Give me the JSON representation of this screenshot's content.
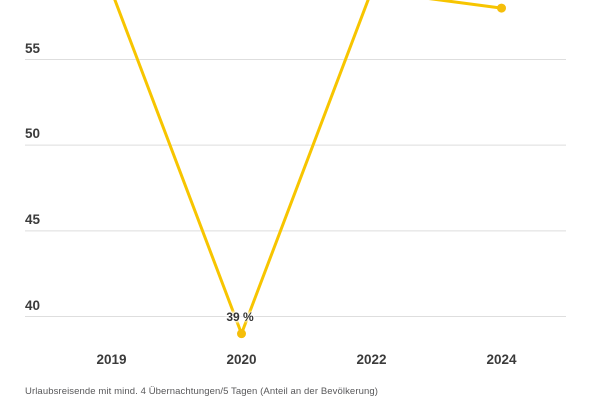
{
  "chart_data": {
    "type": "line",
    "categories": [
      "2019",
      "2020",
      "2022",
      "2024"
    ],
    "series": [
      {
        "name": "Urlaubsreisende mit mind. 4 Übernachtungen/5 Tagen (Anteil an der Bevölkerung)",
        "values": [
          59,
          39,
          59,
          58
        ]
      }
    ],
    "data_labels": [
      "",
      "39 %",
      "",
      ""
    ],
    "yticks": [
      40,
      45,
      50,
      55
    ],
    "ylim_visible": [
      38,
      58.5
    ],
    "grid": true,
    "legend": false,
    "marker": "circle",
    "xlabel": "",
    "ylabel": "",
    "footnote": "Urlaubsreisende mit mind. 4 Übernachtungen/5 Tagen (Anteil an der Bevölkerung)",
    "colors": {
      "line": "#F7C500",
      "marker": "#F5BE0A",
      "grid": "#DEDEDE",
      "tick_text": "#3B3B3B",
      "data_label_text": "#333333",
      "footnote_text": "#58585A",
      "background": "#FFFFFF"
    }
  }
}
